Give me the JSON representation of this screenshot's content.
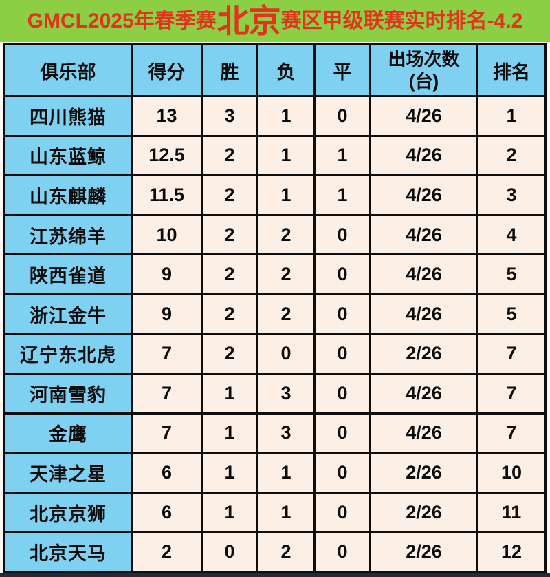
{
  "title": {
    "prefix": "GMCL2025年春季赛",
    "highlight": "北京",
    "suffix": "赛区甲级联赛实时排名-4.2"
  },
  "table": {
    "headers": {
      "club": "俱乐部",
      "score": "得分",
      "win": "胜",
      "loss": "负",
      "draw": "平",
      "appearances_line1": "出场次数",
      "appearances_line2": "(台)",
      "rank": "排名"
    },
    "rows": [
      {
        "club": "四川熊猫",
        "score": "13",
        "win": "3",
        "loss": "1",
        "draw": "0",
        "appearances": "4/26",
        "rank": "1"
      },
      {
        "club": "山东蓝鲸",
        "score": "12.5",
        "win": "2",
        "loss": "1",
        "draw": "1",
        "appearances": "4/26",
        "rank": "2"
      },
      {
        "club": "山东麒麟",
        "score": "11.5",
        "win": "2",
        "loss": "1",
        "draw": "1",
        "appearances": "4/26",
        "rank": "3"
      },
      {
        "club": "江苏绵羊",
        "score": "10",
        "win": "2",
        "loss": "2",
        "draw": "0",
        "appearances": "4/26",
        "rank": "4"
      },
      {
        "club": "陕西雀道",
        "score": "9",
        "win": "2",
        "loss": "2",
        "draw": "0",
        "appearances": "4/26",
        "rank": "5"
      },
      {
        "club": "浙江金牛",
        "score": "9",
        "win": "2",
        "loss": "2",
        "draw": "0",
        "appearances": "4/26",
        "rank": "5"
      },
      {
        "club": "辽宁东北虎",
        "score": "7",
        "win": "2",
        "loss": "0",
        "draw": "0",
        "appearances": "2/26",
        "rank": "7"
      },
      {
        "club": "河南雪豹",
        "score": "7",
        "win": "1",
        "loss": "3",
        "draw": "0",
        "appearances": "4/26",
        "rank": "7"
      },
      {
        "club": "金鹰",
        "score": "7",
        "win": "1",
        "loss": "3",
        "draw": "0",
        "appearances": "4/26",
        "rank": "7"
      },
      {
        "club": "天津之星",
        "score": "6",
        "win": "1",
        "loss": "1",
        "draw": "0",
        "appearances": "2/26",
        "rank": "10"
      },
      {
        "club": "北京京狮",
        "score": "6",
        "win": "1",
        "loss": "1",
        "draw": "0",
        "appearances": "2/26",
        "rank": "11"
      },
      {
        "club": "北京天马",
        "score": "2",
        "win": "0",
        "loss": "2",
        "draw": "0",
        "appearances": "2/26",
        "rank": "12"
      }
    ]
  },
  "colors": {
    "banner_green": "#8CCE44",
    "title_red": "#E2331E",
    "cell_blue": "#7FD1F2",
    "cell_cream": "#FCF0E6",
    "border_black": "#0E0E0E",
    "bottom_bar": "#1f2d38"
  }
}
